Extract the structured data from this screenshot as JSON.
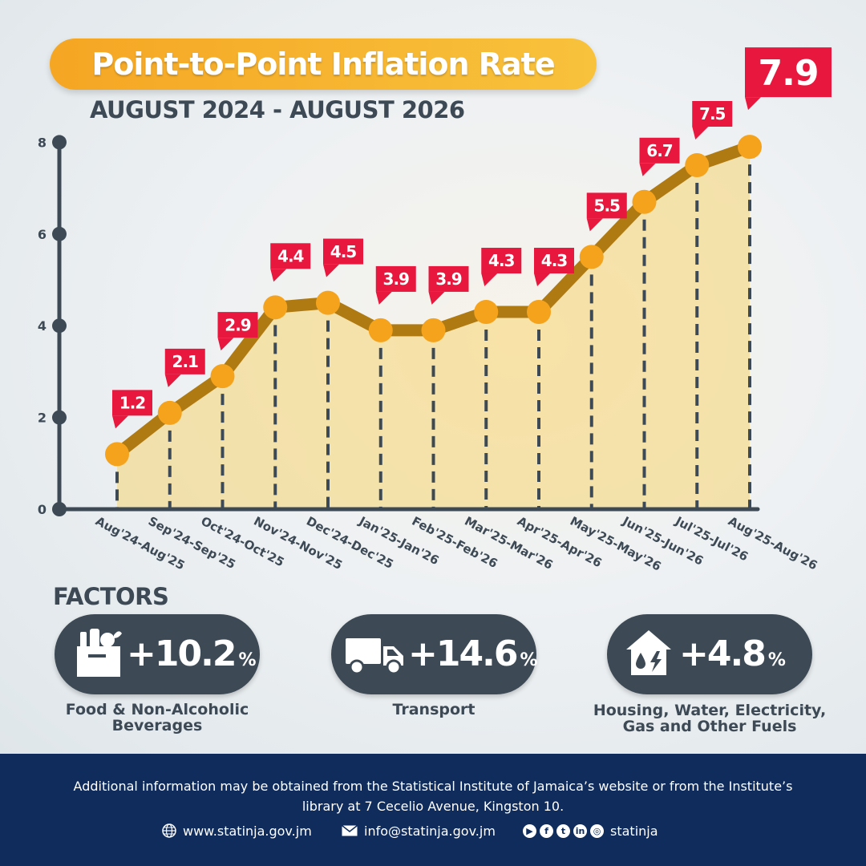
{
  "title": "Point-to-Point Inflation Rate",
  "subtitle": "AUGUST 2024 - AUGUST 2026",
  "colors": {
    "line": "#b07a12",
    "marker": "#f5a31c",
    "label_bg": "#e8173e",
    "axis": "#3d4a56",
    "fill": "#f9cf57",
    "dark": "#3d4a56",
    "footer": "#0f2c5c"
  },
  "chart_data": {
    "type": "line",
    "title": "Point-to-Point Inflation Rate",
    "subtitle": "AUGUST 2024 - AUGUST 2026",
    "xlabel": "",
    "ylabel": "",
    "ylim": [
      0,
      8
    ],
    "yticks": [
      "0",
      "2",
      "4",
      "6",
      "8"
    ],
    "grid": false,
    "categories": [
      "Aug'24-Aug'25",
      "Sep'24-Sep'25",
      "Oct'24-Oct'25",
      "Nov'24-Nov'25",
      "Dec'24-Dec'25",
      "Jan'25-Jan'26",
      "Feb'25-Feb'26",
      "Mar'25-Mar'26",
      "Apr'25-Apr'26",
      "May'25-May'26",
      "Jun'25-Jun'26",
      "Jul'25-Jul'26",
      "Aug'25-Aug'26"
    ],
    "values": [
      1.2,
      2.1,
      2.9,
      4.4,
      4.5,
      3.9,
      3.9,
      4.3,
      4.3,
      5.5,
      6.7,
      7.5,
      7.9
    ],
    "data_labels": [
      "1.2",
      "2.1",
      "2.9",
      "4.4",
      "4.5",
      "3.9",
      "3.9",
      "4.3",
      "4.3",
      "5.5",
      "6.7",
      "7.5",
      "7.9"
    ]
  },
  "factors": {
    "heading": "FACTORS",
    "items": [
      {
        "icon": "grocery-bag-icon",
        "value": "+10.2",
        "unit": "%",
        "label_lines": [
          "Food & Non-Alcoholic",
          "Beverages"
        ]
      },
      {
        "icon": "truck-icon",
        "value": "+14.6",
        "unit": "%",
        "label_lines": [
          "Transport"
        ]
      },
      {
        "icon": "house-utilities-icon",
        "value": "+4.8",
        "unit": "%",
        "label_lines": [
          "Housing, Water, Electricity,",
          "Gas and Other Fuels"
        ]
      }
    ]
  },
  "footer": {
    "note_line1": "Additional information may be obtained from the Statistical Institute of Jamaica’s website or from the Institute’s",
    "note_line2": "library at 7 Cecelio Avenue, Kingston 10.",
    "website_icon": "globe-icon",
    "website": "www.statinja.gov.jm",
    "email_icon": "envelope-icon",
    "email": "info@statinja.gov.jm",
    "social_icons": [
      "youtube-icon",
      "facebook-icon",
      "twitter-icon",
      "linkedin-icon",
      "instagram-icon"
    ],
    "social_handle": "statinja"
  }
}
